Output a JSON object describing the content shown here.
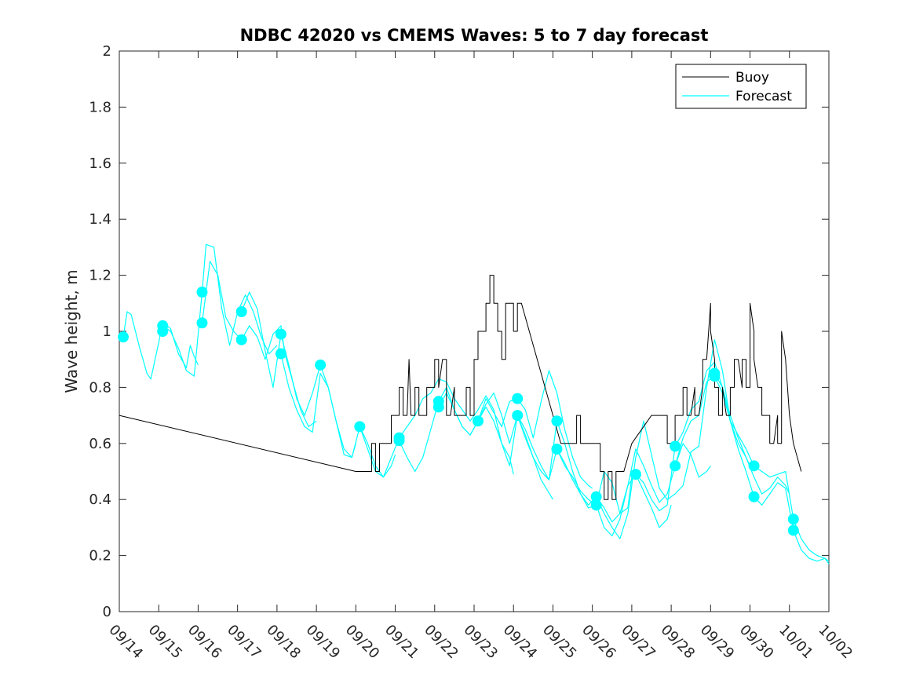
{
  "chart_data": {
    "type": "line",
    "title": "NDBC 42020 vs CMEMS Waves: 5 to 7 day forecast",
    "xlabel": "",
    "ylabel": "Wave height, m",
    "xlim": [
      0,
      18
    ],
    "ylim": [
      0,
      2
    ],
    "x_tick_labels": [
      "09/14",
      "09/15",
      "09/16",
      "09/17",
      "09/18",
      "09/19",
      "09/20",
      "09/21",
      "09/22",
      "09/23",
      "09/24",
      "09/25",
      "09/26",
      "09/27",
      "09/28",
      "09/29",
      "09/30",
      "10/01",
      "10/02"
    ],
    "y_ticks": [
      0,
      0.2,
      0.4,
      0.6,
      0.8,
      1,
      1.2,
      1.4,
      1.6,
      1.8,
      2
    ],
    "y_tick_labels": [
      "0",
      "0.2",
      "0.4",
      "0.6",
      "0.8",
      "1",
      "1.2",
      "1.4",
      "1.6",
      "1.8",
      "2"
    ],
    "legend": {
      "position": "top-right",
      "entries": [
        "Buoy",
        "Forecast"
      ]
    },
    "colors": {
      "buoy": "#000000",
      "forecast": "#00ffff",
      "markers": "#00ffff"
    },
    "series": [
      {
        "name": "Buoy",
        "x": [
          0,
          6.0,
          6.4,
          6.4,
          6.5,
          6.5,
          6.6,
          6.6,
          6.8,
          6.9,
          6.9,
          7.1,
          7.1,
          7.2,
          7.2,
          7.3,
          7.35,
          7.4,
          7.5,
          7.5,
          7.6,
          7.6,
          7.8,
          7.8,
          7.9,
          8.0,
          8.0,
          8.1,
          8.1,
          8.2,
          8.3,
          8.3,
          8.4,
          8.5,
          8.5,
          8.6,
          8.8,
          8.8,
          8.9,
          8.9,
          9.0,
          9.0,
          9.05,
          9.1,
          9.1,
          9.3,
          9.3,
          9.4,
          9.4,
          9.5,
          9.5,
          9.55,
          9.6,
          9.6,
          9.7,
          9.7,
          9.8,
          9.8,
          9.9,
          10.0,
          10.0,
          10.1,
          10.1,
          10.2,
          11.2,
          11.6,
          11.6,
          11.7,
          11.7,
          11.9,
          12.2,
          12.2,
          12.3,
          12.3,
          12.4,
          12.4,
          12.5,
          12.5,
          12.6,
          12.6,
          12.8,
          13.0,
          13.5,
          13.9,
          13.9,
          14.1,
          14.1,
          14.3,
          14.3,
          14.4,
          14.4,
          14.5,
          14.6,
          14.6,
          14.7,
          14.8,
          14.8,
          14.9,
          15.0,
          15.0,
          15.1,
          15.1,
          15.2,
          15.2,
          15.3,
          15.3,
          15.4,
          15.5,
          15.5,
          15.6,
          15.6,
          15.7,
          15.8,
          15.8,
          15.9,
          15.9,
          16.0,
          16.0,
          16.1,
          16.1,
          16.2,
          16.3,
          16.3,
          16.4,
          16.5,
          16.5,
          16.6,
          16.7,
          16.7,
          16.8,
          16.8,
          16.9,
          17.0,
          17.0,
          17.1,
          17.3
        ],
        "y": [
          0.7,
          0.5,
          0.5,
          0.6,
          0.6,
          0.5,
          0.5,
          0.6,
          0.6,
          0.6,
          0.7,
          0.7,
          0.8,
          0.8,
          0.7,
          0.7,
          0.9,
          0.7,
          0.7,
          0.8,
          0.8,
          0.7,
          0.7,
          0.8,
          0.8,
          0.8,
          0.9,
          0.9,
          0.8,
          0.9,
          0.9,
          0.7,
          0.7,
          0.8,
          0.7,
          0.7,
          0.7,
          0.8,
          0.8,
          0.7,
          0.7,
          0.9,
          0.9,
          0.9,
          1.0,
          1.0,
          1.1,
          1.1,
          1.2,
          1.2,
          1.1,
          1.1,
          1.1,
          1.0,
          1.0,
          0.9,
          0.9,
          1.1,
          1.1,
          1.1,
          1.0,
          1.0,
          1.1,
          1.1,
          0.6,
          0.6,
          0.7,
          0.7,
          0.6,
          0.6,
          0.6,
          0.5,
          0.5,
          0.4,
          0.4,
          0.5,
          0.5,
          0.4,
          0.4,
          0.5,
          0.5,
          0.6,
          0.7,
          0.7,
          0.6,
          0.6,
          0.7,
          0.7,
          0.8,
          0.8,
          0.7,
          0.7,
          0.8,
          0.7,
          0.7,
          0.8,
          0.9,
          0.9,
          1.1,
          1.0,
          0.9,
          0.8,
          0.8,
          0.7,
          0.7,
          0.8,
          0.7,
          0.7,
          0.8,
          0.8,
          0.9,
          0.9,
          0.8,
          0.9,
          0.9,
          0.8,
          0.8,
          1.1,
          1.0,
          0.9,
          0.8,
          0.8,
          0.7,
          0.7,
          0.7,
          0.6,
          0.6,
          0.7,
          0.6,
          0.6,
          1.0,
          0.9,
          0.7,
          0.7,
          0.6,
          0.5
        ]
      },
      {
        "name": "Forecast",
        "x": [
          0.1,
          0.2,
          0.3,
          0.5,
          0.7,
          0.8,
          1.0,
          1.1,
          1.3,
          1.5,
          1.7,
          1.8,
          1.9,
          2.0
        ],
        "y": [
          0.98,
          1.07,
          1.06,
          0.95,
          0.85,
          0.83,
          0.96,
          1.03,
          1.01,
          0.92,
          0.87,
          0.95,
          0.91,
          0.88
        ]
      },
      {
        "name": "Forecast",
        "x": [
          1.1,
          1.3,
          1.5,
          1.7,
          1.9,
          2.1,
          2.2,
          2.4,
          2.6,
          2.8,
          3.0,
          3.2,
          3.4,
          3.6,
          3.8,
          4.0
        ],
        "y": [
          1.02,
          1.0,
          0.94,
          0.86,
          0.84,
          1.14,
          1.31,
          1.3,
          1.08,
          0.95,
          1.07,
          1.13,
          1.07,
          0.98,
          0.92,
          0.95
        ]
      },
      {
        "name": "Forecast",
        "x": [
          2.1,
          2.3,
          2.5,
          2.7,
          2.9,
          3.1,
          3.3,
          3.5,
          3.7,
          3.9,
          4.1,
          4.2,
          4.4,
          4.6,
          4.8,
          5.0
        ],
        "y": [
          1.03,
          1.25,
          1.2,
          1.05,
          1.0,
          0.97,
          1.02,
          0.98,
          0.9,
          0.99,
          1.02,
          0.92,
          0.82,
          0.72,
          0.66,
          0.68
        ]
      },
      {
        "name": "Forecast",
        "x": [
          3.1,
          3.3,
          3.5,
          3.7,
          3.9,
          4.1,
          4.3,
          4.5,
          4.7,
          4.9,
          5.1,
          5.3,
          5.5,
          5.7,
          5.9,
          6.0
        ],
        "y": [
          1.07,
          1.14,
          1.08,
          0.93,
          0.8,
          0.99,
          0.88,
          0.76,
          0.7,
          0.78,
          0.88,
          0.8,
          0.68,
          0.56,
          0.55,
          0.6
        ]
      },
      {
        "name": "Forecast",
        "x": [
          4.1,
          4.3,
          4.5,
          4.7,
          4.9,
          5.1,
          5.3,
          5.5,
          5.7,
          5.9,
          6.1,
          6.3,
          6.5,
          6.7,
          6.9,
          7.0
        ],
        "y": [
          0.92,
          0.8,
          0.72,
          0.66,
          0.64,
          0.85,
          0.8,
          0.68,
          0.58,
          0.55,
          0.66,
          0.58,
          0.5,
          0.48,
          0.52,
          0.56
        ]
      },
      {
        "name": "Forecast",
        "x": [
          6.1,
          6.3,
          6.5,
          6.7,
          6.9,
          7.1,
          7.3,
          7.5,
          7.7,
          7.9,
          8.1,
          8.3,
          8.5,
          8.7,
          8.9,
          9.1,
          9.3,
          9.5,
          9.7,
          9.9,
          10.0
        ],
        "y": [
          0.66,
          0.6,
          0.52,
          0.48,
          0.55,
          0.62,
          0.66,
          0.7,
          0.76,
          0.78,
          0.83,
          0.82,
          0.76,
          0.72,
          0.68,
          0.72,
          0.77,
          0.72,
          0.6,
          0.55,
          0.49
        ]
      },
      {
        "name": "Forecast",
        "x": [
          7.1,
          7.3,
          7.5,
          7.7,
          7.9,
          8.1,
          8.3,
          8.5,
          8.7,
          8.9,
          9.1,
          9.3,
          9.5,
          9.7,
          9.9,
          10.1,
          10.3,
          10.5,
          10.7,
          11.0
        ],
        "y": [
          0.61,
          0.55,
          0.5,
          0.55,
          0.65,
          0.75,
          0.8,
          0.72,
          0.66,
          0.63,
          0.68,
          0.73,
          0.68,
          0.6,
          0.52,
          0.7,
          0.62,
          0.55,
          0.47,
          0.4
        ]
      },
      {
        "name": "Forecast",
        "x": [
          8.1,
          8.3,
          8.5,
          8.7,
          8.9,
          9.1,
          9.3,
          9.5,
          9.7,
          9.9,
          10.1,
          10.3,
          10.5,
          10.7,
          10.9,
          11.1,
          11.3,
          11.5,
          11.7,
          11.9,
          12.0
        ],
        "y": [
          0.73,
          0.78,
          0.72,
          0.66,
          0.63,
          0.68,
          0.76,
          0.71,
          0.66,
          0.75,
          0.76,
          0.72,
          0.62,
          0.75,
          0.86,
          0.78,
          0.65,
          0.55,
          0.48,
          0.45,
          0.44
        ]
      },
      {
        "name": "Forecast",
        "x": [
          9.1,
          9.3,
          9.5,
          9.7,
          9.9,
          10.1,
          10.3,
          10.5,
          10.7,
          10.9,
          11.1,
          11.3,
          11.5,
          11.7,
          11.9,
          12.1,
          12.3,
          12.5,
          12.7,
          12.9,
          13.0
        ],
        "y": [
          0.68,
          0.74,
          0.78,
          0.7,
          0.6,
          0.7,
          0.63,
          0.55,
          0.5,
          0.47,
          0.68,
          0.6,
          0.5,
          0.42,
          0.37,
          0.38,
          0.5,
          0.46,
          0.35,
          0.37,
          0.48
        ]
      },
      {
        "name": "Forecast",
        "x": [
          10.1,
          10.3,
          10.5,
          10.7,
          10.9,
          11.1,
          11.3,
          11.5,
          11.7,
          11.9,
          12.1,
          12.3,
          12.5,
          12.7,
          12.9,
          13.1,
          13.3,
          13.5,
          13.7,
          13.9,
          14.0
        ],
        "y": [
          0.7,
          0.65,
          0.58,
          0.52,
          0.47,
          0.58,
          0.53,
          0.47,
          0.42,
          0.38,
          0.41,
          0.37,
          0.32,
          0.35,
          0.45,
          0.49,
          0.43,
          0.37,
          0.3,
          0.33,
          0.38
        ]
      },
      {
        "name": "Forecast",
        "x": [
          11.1,
          11.3,
          11.5,
          11.7,
          11.9,
          12.1,
          12.3,
          12.5,
          12.7,
          12.9,
          13.1,
          13.3,
          13.5,
          13.7,
          13.9,
          14.1,
          14.3,
          14.5,
          14.7,
          14.9,
          15.0
        ],
        "y": [
          0.58,
          0.52,
          0.48,
          0.43,
          0.4,
          0.38,
          0.3,
          0.27,
          0.33,
          0.45,
          0.58,
          0.52,
          0.45,
          0.39,
          0.42,
          0.52,
          0.6,
          0.56,
          0.48,
          0.5,
          0.52
        ]
      },
      {
        "name": "Forecast",
        "x": [
          12.1,
          12.3,
          12.5,
          12.7,
          12.9,
          13.1,
          13.3,
          13.5,
          13.7,
          13.9,
          14.1,
          14.3,
          14.5,
          14.7,
          14.9,
          15.1,
          15.3,
          15.5,
          15.7,
          15.9,
          16.0
        ],
        "y": [
          0.41,
          0.35,
          0.3,
          0.26,
          0.35,
          0.55,
          0.68,
          0.56,
          0.44,
          0.4,
          0.42,
          0.45,
          0.57,
          0.59,
          0.8,
          0.97,
          0.86,
          0.68,
          0.6,
          0.55,
          0.52
        ]
      },
      {
        "name": "Forecast",
        "x": [
          13.1,
          13.3,
          13.5,
          13.7,
          13.9,
          14.1,
          14.3,
          14.5,
          14.7,
          14.9,
          15.1,
          15.3,
          15.5,
          15.7,
          15.9,
          16.1,
          16.3,
          16.5,
          16.7,
          16.9,
          17.0
        ],
        "y": [
          0.49,
          0.46,
          0.4,
          0.36,
          0.38,
          0.59,
          0.64,
          0.72,
          0.75,
          0.86,
          0.89,
          0.8,
          0.7,
          0.62,
          0.55,
          0.48,
          0.42,
          0.44,
          0.48,
          0.45,
          0.42
        ]
      },
      {
        "name": "Forecast",
        "x": [
          14.1,
          14.3,
          14.5,
          14.7,
          14.9,
          15.1,
          15.3,
          15.5,
          15.7,
          15.9,
          16.1,
          16.3,
          16.5,
          16.7,
          16.9,
          17.1,
          17.3,
          17.5,
          17.7,
          17.9,
          18.0
        ],
        "y": [
          0.52,
          0.62,
          0.68,
          0.7,
          0.82,
          0.84,
          0.78,
          0.68,
          0.63,
          0.58,
          0.52,
          0.5,
          0.48,
          0.49,
          0.5,
          0.33,
          0.26,
          0.22,
          0.2,
          0.19,
          0.18
        ]
      },
      {
        "name": "Forecast",
        "x": [
          15.1,
          15.3,
          15.5,
          15.7,
          15.9,
          16.1,
          16.3,
          16.5,
          16.7,
          16.9,
          17.1,
          17.3,
          17.5,
          17.7,
          17.9,
          18.0
        ],
        "y": [
          0.85,
          0.8,
          0.68,
          0.58,
          0.5,
          0.41,
          0.38,
          0.42,
          0.46,
          0.44,
          0.29,
          0.22,
          0.19,
          0.18,
          0.19,
          0.17
        ]
      }
    ],
    "markers": {
      "name": "Forecast start points",
      "x": [
        0.1,
        1.1,
        1.1,
        2.1,
        2.1,
        3.1,
        3.1,
        4.1,
        4.1,
        5.1,
        6.1,
        7.1,
        7.1,
        8.1,
        8.1,
        9.1,
        10.1,
        10.1,
        11.1,
        11.1,
        12.1,
        12.1,
        13.1,
        14.1,
        14.1,
        15.1,
        15.1,
        16.1,
        16.1,
        17.1,
        17.1
      ],
      "y": [
        0.98,
        1.02,
        1.0,
        1.14,
        1.03,
        1.07,
        0.97,
        0.99,
        0.92,
        0.88,
        0.66,
        0.62,
        0.61,
        0.75,
        0.73,
        0.68,
        0.76,
        0.7,
        0.68,
        0.58,
        0.41,
        0.38,
        0.49,
        0.59,
        0.52,
        0.85,
        0.84,
        0.52,
        0.41,
        0.33,
        0.29
      ]
    }
  }
}
